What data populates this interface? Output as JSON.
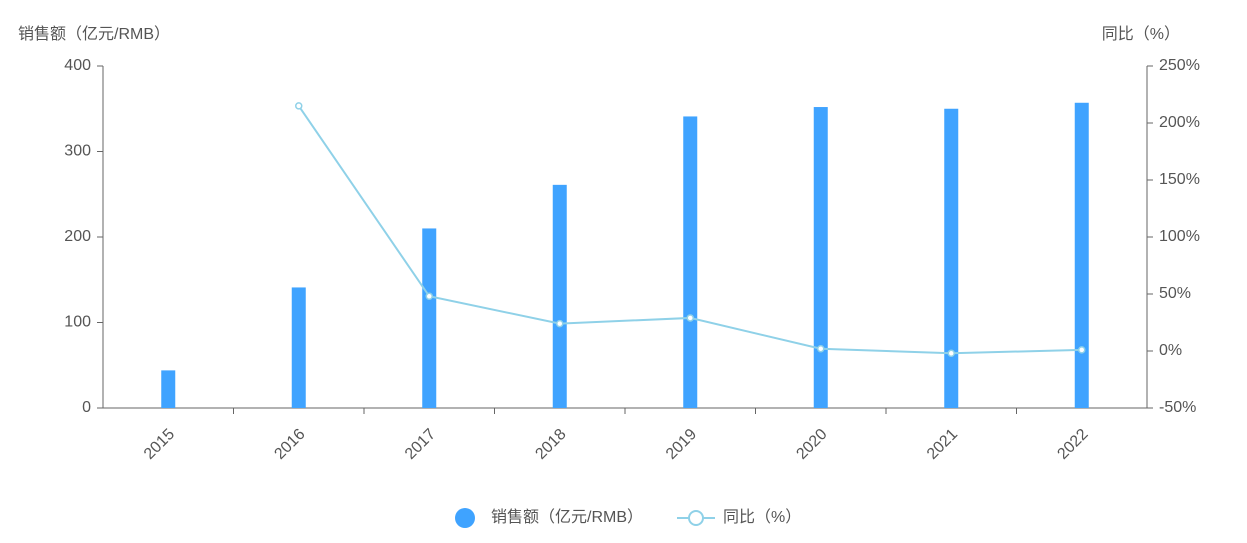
{
  "chart_data": {
    "type": "bar+line",
    "y_label": "销售额（亿元/RMB）",
    "y2_label": "同比（%）",
    "categories": [
      "2015",
      "2016",
      "2017",
      "2018",
      "2019",
      "2020",
      "2021",
      "2022"
    ],
    "series": [
      {
        "name": "销售额（亿元/RMB）",
        "type": "bar",
        "color": "#3fa3ff",
        "axis": "y",
        "values": [
          44,
          141,
          210,
          261,
          341,
          352,
          350,
          357
        ]
      },
      {
        "name": "同比（%）",
        "type": "line",
        "color": "#8fd1e8",
        "axis": "y2",
        "values": [
          null,
          215,
          48,
          24,
          29,
          2,
          -2,
          1
        ]
      }
    ],
    "ylim": [
      0,
      400
    ],
    "yticks": [
      0,
      100,
      200,
      300,
      400
    ],
    "y2lim": [
      -50,
      250
    ],
    "y2ticks": [
      {
        "value": -50,
        "label": "-50%"
      },
      {
        "value": 0,
        "label": "0%"
      },
      {
        "value": 50,
        "label": "50%"
      },
      {
        "value": 100,
        "label": "100%"
      },
      {
        "value": 150,
        "label": "150%"
      },
      {
        "value": 200,
        "label": "200%"
      },
      {
        "value": 250,
        "label": "250%"
      }
    ]
  }
}
